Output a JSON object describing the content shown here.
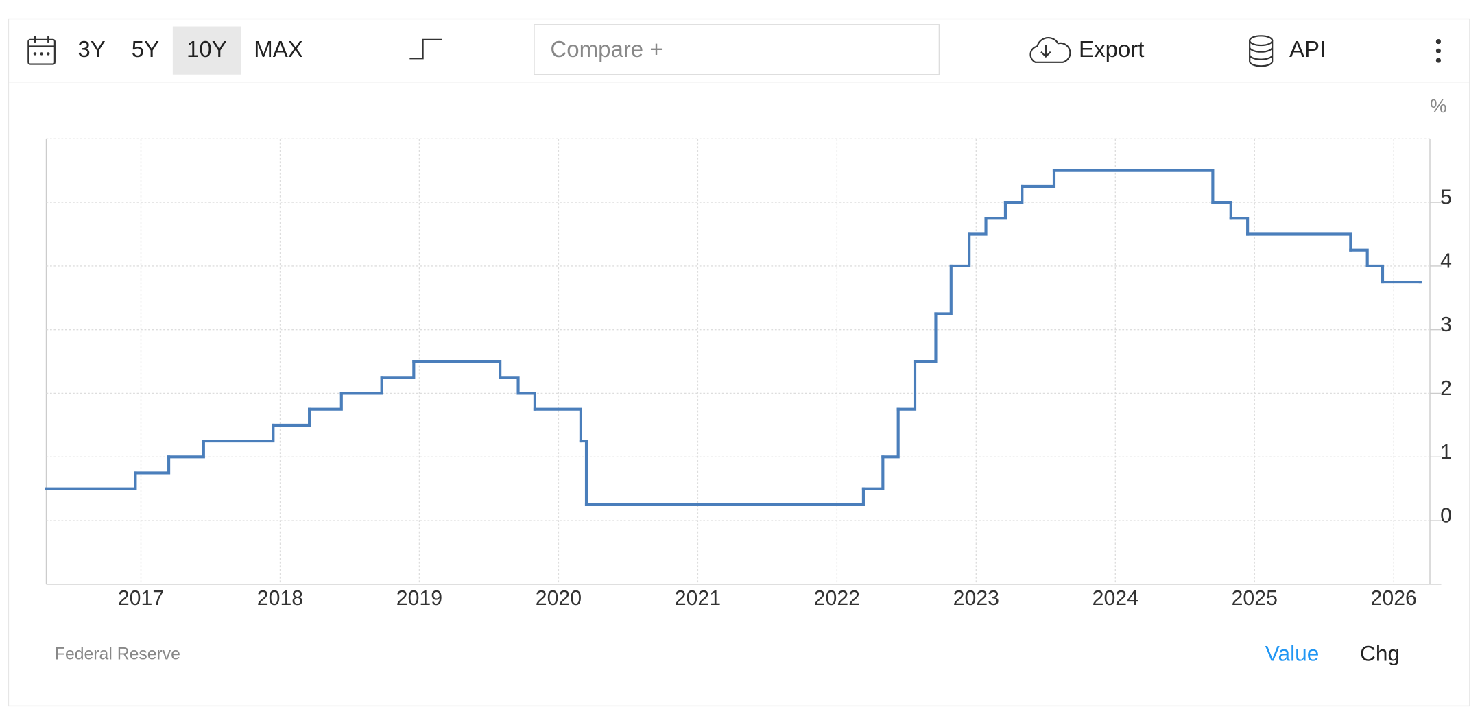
{
  "toolbar": {
    "ranges": [
      "3Y",
      "5Y",
      "10Y",
      "MAX"
    ],
    "selected_range": 2,
    "compare": "Compare +",
    "export": "Export",
    "api": "API"
  },
  "chart_data": {
    "type": "step",
    "unit": "%",
    "x": [
      2016.32,
      2016.96,
      2017.2,
      2017.45,
      2017.95,
      2018.21,
      2018.44,
      2018.73,
      2018.96,
      2019.58,
      2019.71,
      2019.83,
      2020.16,
      2020.2,
      2022.19,
      2022.33,
      2022.44,
      2022.56,
      2022.71,
      2022.82,
      2022.95,
      2023.07,
      2023.21,
      2023.33,
      2023.56,
      2024.7,
      2024.83,
      2024.95,
      2025.69,
      2025.81,
      2025.92,
      2026.19
    ],
    "series": [
      {
        "color": "#4a7ebb",
        "values": [
          0.5,
          0.75,
          1,
          1.25,
          1.5,
          1.75,
          2,
          2.25,
          2.5,
          2.25,
          2,
          1.75,
          1.25,
          0.25,
          0.5,
          1,
          1.75,
          2.5,
          3.25,
          4,
          4.5,
          4.75,
          5,
          5.25,
          5.5,
          5,
          4.75,
          4.5,
          4.25,
          4,
          3.75,
          3.75
        ]
      }
    ],
    "xlim": [
      2016.32,
      2026.26
    ],
    "xticks": [
      2017,
      2018,
      2019,
      2020,
      2021,
      2022,
      2023,
      2024,
      2025,
      2026
    ],
    "ylim": [
      -1,
      6
    ],
    "yticks": [
      0,
      1,
      2,
      3,
      4,
      5
    ],
    "grid": true,
    "y_axis_side": "right"
  },
  "footer": {
    "source": "Federal Reserve",
    "tabs": [
      "Value",
      "Chg"
    ],
    "active_tab": 0
  }
}
